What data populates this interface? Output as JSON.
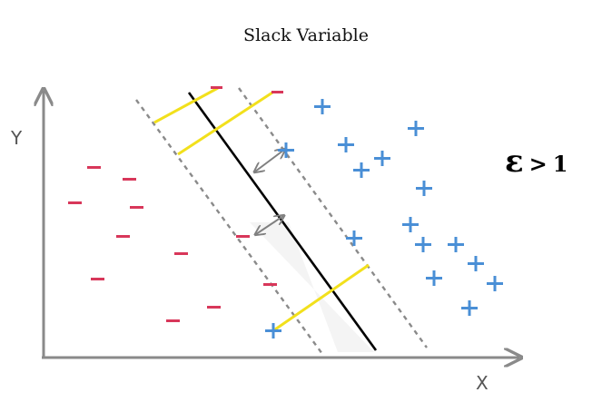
{
  "title": "Slack Variable",
  "axes": {
    "x_label": "X",
    "y_label": "Y"
  },
  "annotation": {
    "symbol": "ε",
    "relation": ">",
    "value": "1"
  },
  "colors": {
    "negative": "#d8375a",
    "positive": "#4a8fd6",
    "slack": "#f2e01c",
    "hyperplane": "#000000",
    "margin": "#8a8a8a",
    "axis": "#8a8a8a"
  },
  "marks": {
    "negative_symbol": "−",
    "positive_symbol": "+"
  }
}
